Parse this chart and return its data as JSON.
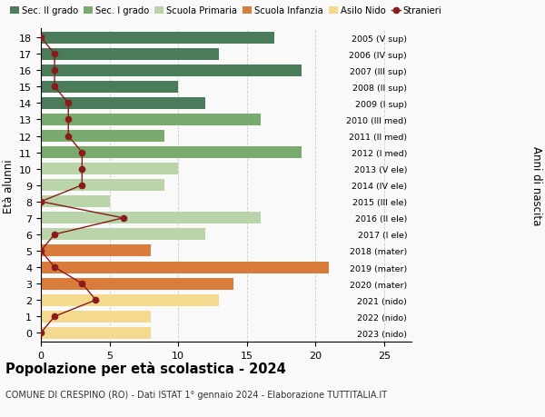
{
  "ages": [
    18,
    17,
    16,
    15,
    14,
    13,
    12,
    11,
    10,
    9,
    8,
    7,
    6,
    5,
    4,
    3,
    2,
    1,
    0
  ],
  "right_labels": [
    "2005 (V sup)",
    "2006 (IV sup)",
    "2007 (III sup)",
    "2008 (II sup)",
    "2009 (I sup)",
    "2010 (III med)",
    "2011 (II med)",
    "2012 (I med)",
    "2013 (V ele)",
    "2014 (IV ele)",
    "2015 (III ele)",
    "2016 (II ele)",
    "2017 (I ele)",
    "2018 (mater)",
    "2019 (mater)",
    "2020 (mater)",
    "2021 (nido)",
    "2022 (nido)",
    "2023 (nido)"
  ],
  "bar_values": [
    17,
    13,
    19,
    10,
    12,
    16,
    9,
    19,
    10,
    9,
    5,
    16,
    12,
    8,
    21,
    14,
    13,
    8,
    8
  ],
  "bar_colors": [
    "#4a7c59",
    "#4a7c59",
    "#4a7c59",
    "#4a7c59",
    "#4a7c59",
    "#7aab6e",
    "#7aab6e",
    "#7aab6e",
    "#b8d4a8",
    "#b8d4a8",
    "#b8d4a8",
    "#b8d4a8",
    "#b8d4a8",
    "#d97b3a",
    "#d97b3a",
    "#d97b3a",
    "#f5d98e",
    "#f5d98e",
    "#f5d98e"
  ],
  "stranieri_values": [
    0,
    1,
    1,
    1,
    2,
    2,
    2,
    3,
    3,
    3,
    0,
    6,
    1,
    0,
    1,
    3,
    4,
    1,
    0
  ],
  "legend_labels": [
    "Sec. II grado",
    "Sec. I grado",
    "Scuola Primaria",
    "Scuola Infanzia",
    "Asilo Nido",
    "Stranieri"
  ],
  "legend_colors": [
    "#4a7c59",
    "#7aab6e",
    "#b8d4a8",
    "#d97b3a",
    "#f5d98e",
    "#a83030"
  ],
  "title": "Popolazione per età scolastica - 2024",
  "subtitle": "COMUNE DI CRESPINO (RO) - Dati ISTAT 1° gennaio 2024 - Elaborazione TUTTITALIA.IT",
  "ylabel": "Età alunni",
  "right_ylabel": "Anni di nascita",
  "xlim": [
    0,
    27
  ],
  "xticks": [
    0,
    5,
    10,
    15,
    20,
    25
  ],
  "background_color": "#f9f9f9",
  "grid_color": "#cccccc",
  "stranieri_line_color": "#8b1a1a",
  "stranieri_marker_color": "#8b1a1a",
  "bar_height": 0.72
}
